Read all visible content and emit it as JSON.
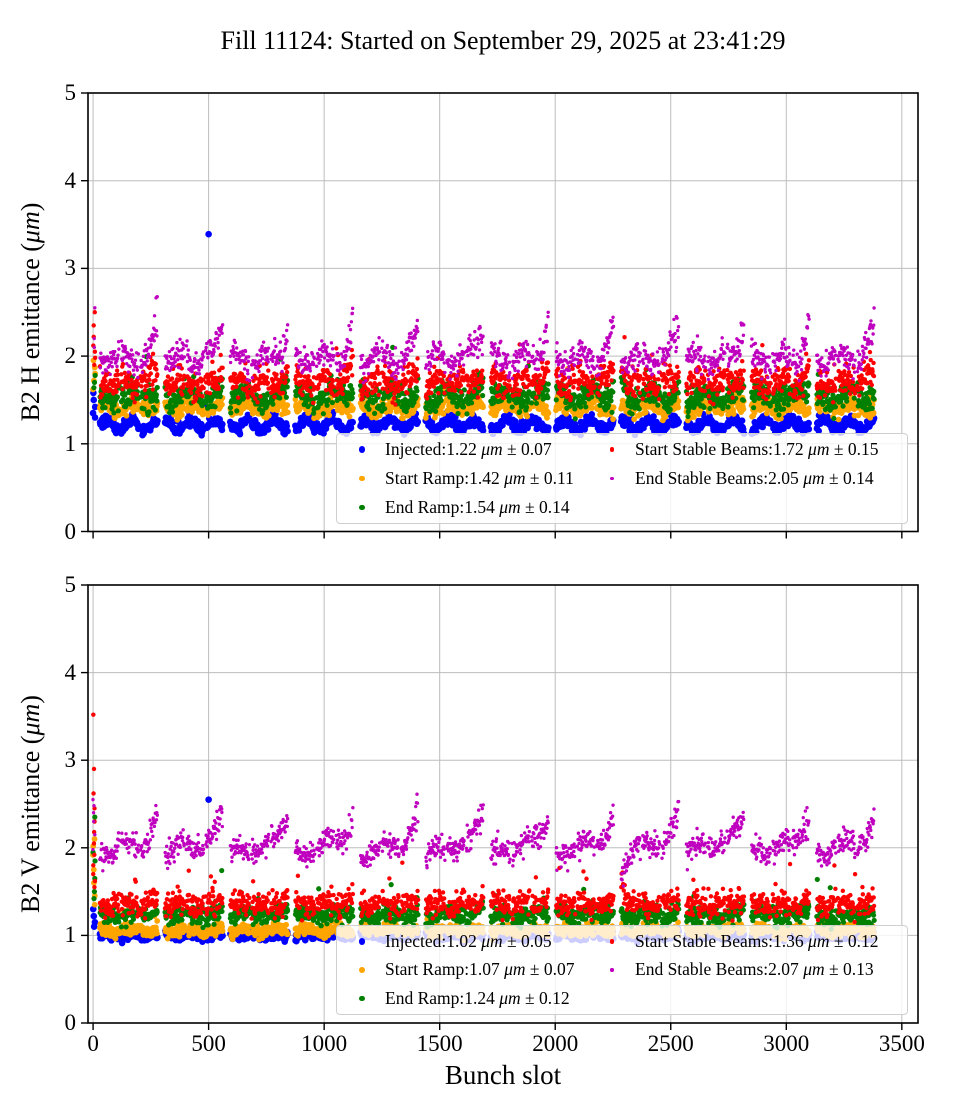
{
  "title": "Fill 11124: Started on September 29, 2025 at 23:41:29",
  "xlabel": "Bunch slot",
  "chart_data": [
    {
      "type": "scatter",
      "subplot": "top",
      "ylabel_pre": "B2 H emittance (",
      "ylabel_unit": "μm",
      "ylabel_post": ")",
      "xlim": [
        -22,
        3570
      ],
      "ylim": [
        0,
        5
      ],
      "xticks": [
        0,
        500,
        1000,
        1500,
        2000,
        2500,
        3000,
        3500
      ],
      "yticks": [
        0,
        1,
        2,
        3,
        4,
        5
      ],
      "grid": true,
      "legend_position": "lower right, 2 columns, semi-transparent",
      "trains": {
        "count": 12,
        "first_slot": 30,
        "train_slots": 250,
        "gap_slots": 32,
        "step": 2,
        "subgap_slots": 8
      },
      "series": [
        {
          "name": "Injected",
          "legend_value": "1.22",
          "legend_std": "0.07",
          "unit": "μm",
          "pm": "±",
          "color": "#0000ff",
          "marker": 6.6,
          "base": 1.22,
          "wave": 0.055,
          "period": 110,
          "noise": 0.032,
          "tail": 0,
          "spike_p": 0.002,
          "spike_amp": 0.15
        },
        {
          "name": "Start Ramp",
          "legend_value": "1.42",
          "legend_std": "0.11",
          "unit": "μm",
          "pm": "±",
          "color": "#ffa500",
          "marker": 5.8,
          "base": 1.42,
          "wave": 0.04,
          "period": 130,
          "noise": 0.045,
          "tail": 0,
          "spike_p": 0.004,
          "spike_amp": 0.2
        },
        {
          "name": "End Ramp",
          "legend_value": "1.54",
          "legend_std": "0.14",
          "unit": "μm",
          "pm": "±",
          "color": "#008000",
          "marker": 5.2,
          "base": 1.54,
          "wave": 0.06,
          "period": 150,
          "noise": 0.07,
          "tail": 0.12,
          "spike_p": 0.008,
          "spike_amp": 0.3
        },
        {
          "name": "Start Stable Beams",
          "legend_value": "1.72",
          "legend_std": "0.15",
          "unit": "μm",
          "pm": "±",
          "color": "#ff0000",
          "marker": 4.4,
          "base": 1.7,
          "wave": 0.05,
          "period": 120,
          "noise": 0.08,
          "tail": 0.18,
          "spike_p": 0.012,
          "spike_amp": 0.35
        },
        {
          "name": "End Stable Beams",
          "legend_value": "2.05",
          "legend_std": "0.14",
          "unit": "μm",
          "pm": "±",
          "color": "#bf00bf",
          "marker": 3.4,
          "base": 1.97,
          "wave": 0.08,
          "period": 140,
          "noise": 0.075,
          "tail": 0.55,
          "spike_p": 0,
          "spike_amp": 0
        }
      ],
      "ramps": [
        0,
        0,
        0,
        0,
        0
      ],
      "outliers": [
        {
          "s": 0,
          "x": 500,
          "y": 3.39
        }
      ],
      "left_column_x": 4,
      "left_column": [
        {
          "s": 4,
          "y": 2.55
        },
        {
          "s": 4,
          "y": 2.2
        },
        {
          "s": 4,
          "y": 2.1
        },
        {
          "s": 3,
          "y": 2.5
        },
        {
          "s": 3,
          "y": 2.35
        },
        {
          "s": 3,
          "y": 2.22
        },
        {
          "s": 3,
          "y": 2.12
        },
        {
          "s": 3,
          "y": 2.05
        },
        {
          "s": 3,
          "y": 1.98
        },
        {
          "s": 3,
          "y": 1.9
        },
        {
          "s": 1,
          "y": 1.95
        },
        {
          "s": 1,
          "y": 1.87
        },
        {
          "s": 1,
          "y": 1.8
        },
        {
          "s": 1,
          "y": 1.72
        },
        {
          "s": 1,
          "y": 1.62
        },
        {
          "s": 2,
          "y": 1.78
        },
        {
          "s": 2,
          "y": 1.7
        },
        {
          "s": 2,
          "y": 1.64
        },
        {
          "s": 0,
          "y": 1.58
        },
        {
          "s": 0,
          "y": 1.5
        },
        {
          "s": 0,
          "y": 1.42
        },
        {
          "s": 0,
          "y": 1.35
        },
        {
          "s": 0,
          "y": 1.3
        }
      ],
      "specials": [
        {
          "series": 2,
          "train": 8,
          "mode": "start",
          "amp": 0.35
        },
        {
          "series": 3,
          "train": 8,
          "mode": "start",
          "amp": 0.3
        }
      ]
    },
    {
      "type": "scatter",
      "subplot": "bottom",
      "ylabel_pre": "B2 V emittance (",
      "ylabel_unit": "μm",
      "ylabel_post": ")",
      "xlim": [
        -22,
        3570
      ],
      "ylim": [
        0,
        5
      ],
      "xticks": [
        0,
        500,
        1000,
        1500,
        2000,
        2500,
        3000,
        3500
      ],
      "yticks": [
        0,
        1,
        2,
        3,
        4,
        5
      ],
      "grid": true,
      "legend_position": "lower right, 2 columns, semi-transparent",
      "trains": {
        "count": 12,
        "first_slot": 30,
        "train_slots": 250,
        "gap_slots": 32,
        "step": 2,
        "subgap_slots": 8
      },
      "series": [
        {
          "name": "Injected",
          "legend_value": "1.02",
          "legend_std": "0.05",
          "unit": "μm",
          "pm": "±",
          "color": "#0000ff",
          "marker": 6.6,
          "base": 1.0,
          "wave": 0.018,
          "period": 120,
          "noise": 0.025,
          "tail": 0,
          "spike_p": 0.002,
          "spike_amp": 0.12
        },
        {
          "name": "Start Ramp",
          "legend_value": "1.07",
          "legend_std": "0.07",
          "unit": "μm",
          "pm": "±",
          "color": "#ffa500",
          "marker": 5.8,
          "base": 1.06,
          "wave": 0.02,
          "period": 130,
          "noise": 0.035,
          "tail": 0,
          "spike_p": 0.003,
          "spike_amp": 0.15
        },
        {
          "name": "End Ramp",
          "legend_value": "1.24",
          "legend_std": "0.12",
          "unit": "μm",
          "pm": "±",
          "color": "#008000",
          "marker": 5.2,
          "base": 1.23,
          "wave": 0.03,
          "period": 150,
          "noise": 0.05,
          "tail": 0.1,
          "spike_p": 0.008,
          "spike_amp": 0.3
        },
        {
          "name": "Start Stable Beams",
          "legend_value": "1.36",
          "legend_std": "0.12",
          "unit": "μm",
          "pm": "±",
          "color": "#ff0000",
          "marker": 4.4,
          "base": 1.35,
          "wave": 0.03,
          "period": 120,
          "noise": 0.065,
          "tail": 0.12,
          "spike_p": 0.015,
          "spike_amp": 0.35
        },
        {
          "name": "End Stable Beams",
          "legend_value": "2.07",
          "legend_std": "0.13",
          "unit": "μm",
          "pm": "±",
          "color": "#bf00bf",
          "marker": 3.4,
          "base": 1.93,
          "wave": 0.06,
          "period": 160,
          "noise": 0.07,
          "tail": 0.35,
          "spike_p": 0,
          "spike_amp": 0
        }
      ],
      "ramps": [
        0,
        0,
        0,
        0,
        0.2
      ],
      "outliers": [
        {
          "s": 0,
          "x": 500,
          "y": 2.55
        }
      ],
      "left_column_x": 4,
      "left_column": [
        {
          "s": 3,
          "y": 3.52
        },
        {
          "s": 3,
          "y": 2.9
        },
        {
          "s": 3,
          "y": 2.62
        },
        {
          "s": 3,
          "y": 2.45
        },
        {
          "s": 3,
          "y": 2.3
        },
        {
          "s": 3,
          "y": 2.18
        },
        {
          "s": 3,
          "y": 2.05
        },
        {
          "s": 3,
          "y": 1.92
        },
        {
          "s": 3,
          "y": 1.8
        },
        {
          "s": 3,
          "y": 1.7
        },
        {
          "s": 3,
          "y": 1.62
        },
        {
          "s": 3,
          "y": 1.55
        },
        {
          "s": 4,
          "y": 2.55
        },
        {
          "s": 4,
          "y": 2.48
        },
        {
          "s": 4,
          "y": 2.4
        },
        {
          "s": 4,
          "y": 2.3
        },
        {
          "s": 4,
          "y": 2.15
        },
        {
          "s": 4,
          "y": 1.98
        },
        {
          "s": 1,
          "y": 2.1
        },
        {
          "s": 1,
          "y": 2.02
        },
        {
          "s": 1,
          "y": 1.92
        },
        {
          "s": 1,
          "y": 1.75
        },
        {
          "s": 1,
          "y": 1.6
        },
        {
          "s": 1,
          "y": 1.45
        },
        {
          "s": 1,
          "y": 1.35
        },
        {
          "s": 2,
          "y": 2.35
        },
        {
          "s": 2,
          "y": 1.95
        },
        {
          "s": 2,
          "y": 1.85
        },
        {
          "s": 2,
          "y": 1.65
        },
        {
          "s": 2,
          "y": 1.5
        },
        {
          "s": 2,
          "y": 1.42
        },
        {
          "s": 0,
          "y": 1.3
        },
        {
          "s": 0,
          "y": 1.22
        },
        {
          "s": 0,
          "y": 1.15
        },
        {
          "s": 0,
          "y": 1.1
        }
      ],
      "specials": [
        {
          "series": 3,
          "train": 8,
          "mode": "start",
          "amp": 0.5
        },
        {
          "series": 4,
          "train": 8,
          "mode": "dipstart",
          "amp": -0.18
        }
      ]
    }
  ]
}
